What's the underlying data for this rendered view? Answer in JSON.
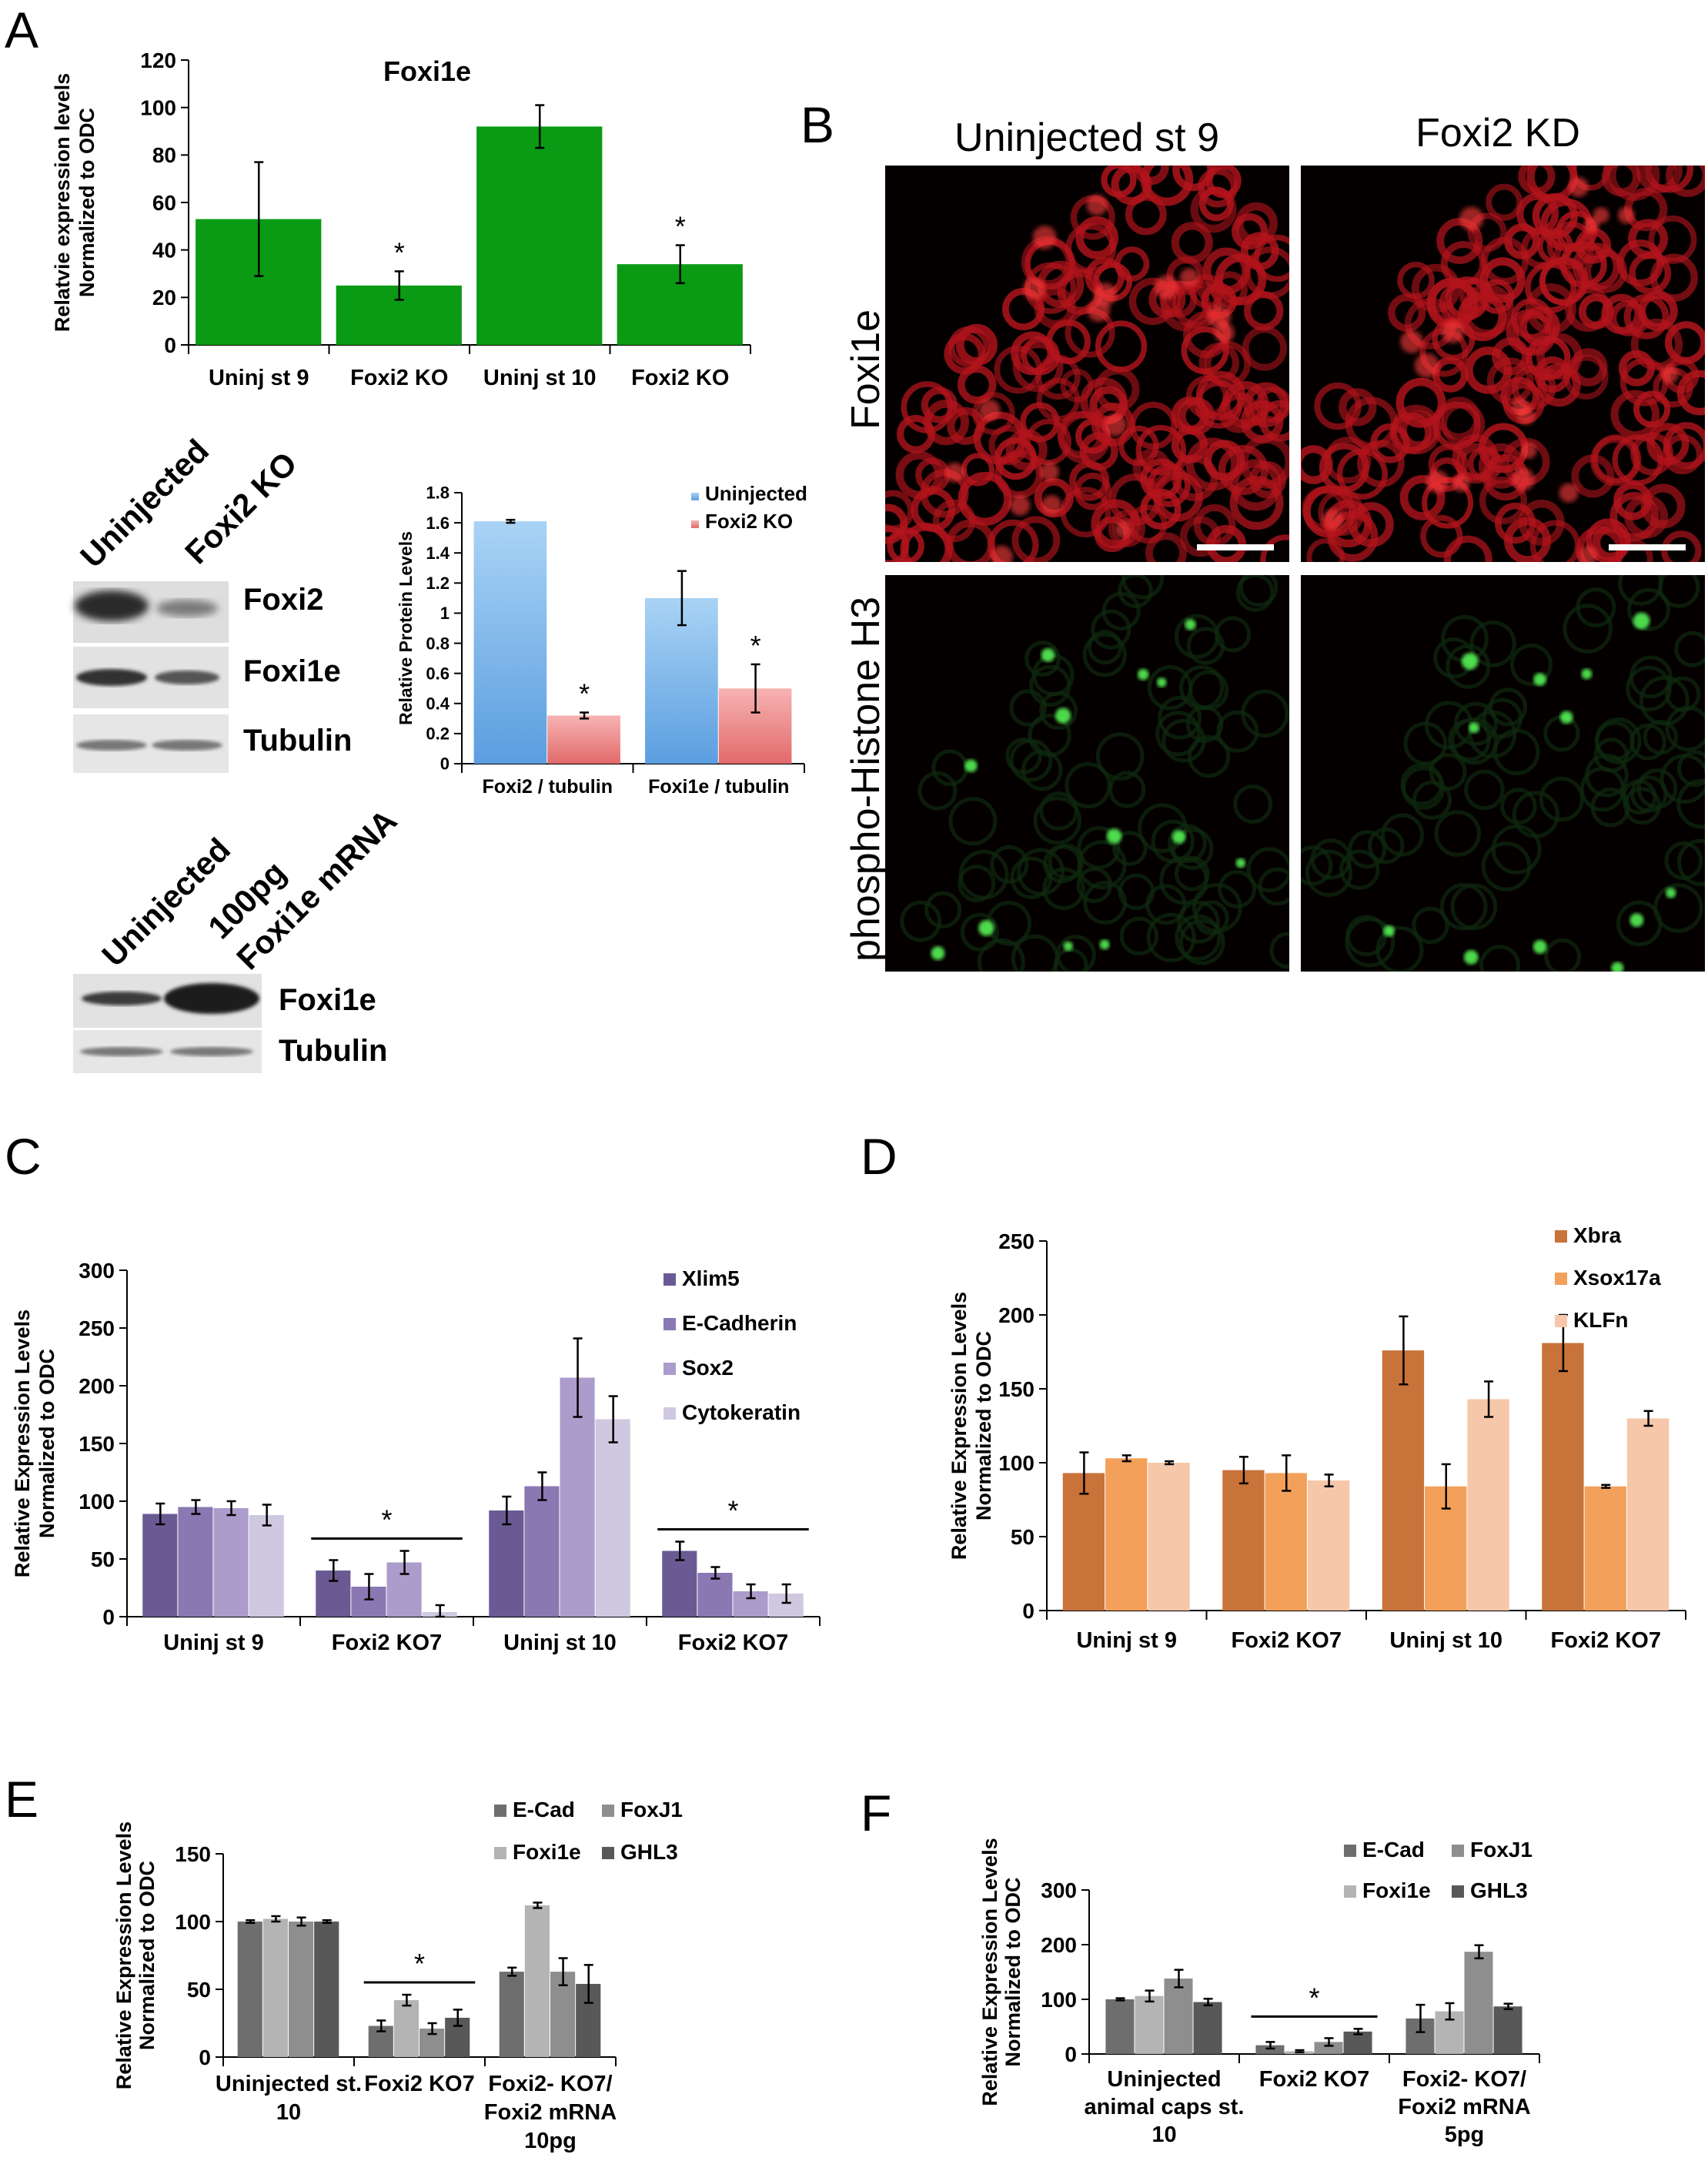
{
  "panels": {
    "A": "A",
    "B": "B",
    "C": "C",
    "D": "D",
    "E": "E",
    "F": "F"
  },
  "colors": {
    "green": "#0a9a14",
    "blue": "#8dc4f0",
    "pink": "#f08c8c",
    "purple1": "#6a5a94",
    "purple2": "#8a78b2",
    "purple3": "#ab9ccb",
    "purple4": "#cfc8e0",
    "orange1": "#c8733a",
    "orange2": "#f3a05a",
    "orange3": "#f6c7a9",
    "gray1": "#6e6e6e",
    "gray2": "#b4b4b4",
    "gray3": "#8e8e8e",
    "gray4": "#585858"
  },
  "blots": {
    "blot1": {
      "lanes": [
        "Uninjected",
        "Foxi2 KO"
      ],
      "bands": [
        "Foxi2",
        "Foxi1e",
        "Tubulin"
      ]
    },
    "blot2": {
      "lanes": [
        "Uninjected",
        "100pg",
        "Foxi1e mRNA"
      ],
      "bands": [
        "Foxi1e",
        "Tubulin"
      ]
    }
  },
  "micrographs": {
    "col_titles": [
      "Uninjected st 9",
      "Foxi2 KD"
    ],
    "row_labels": [
      "Foxi1e",
      "phospho-Histone H3"
    ]
  },
  "chart_data": [
    {
      "id": "A1",
      "type": "bar",
      "title": "Foxi1e",
      "ylabel": [
        "Relatvie expression levels",
        "Normalized to ODC"
      ],
      "categories": [
        "Uninj st 9",
        "Foxi2 KO",
        "Uninj st 10",
        "Foxi2 KO"
      ],
      "series": [
        {
          "values": [
            53,
            25,
            92,
            34
          ],
          "errors": [
            24,
            6,
            9,
            8
          ]
        }
      ],
      "significance": [
        "",
        "*",
        "",
        "*"
      ],
      "ylim": [
        0,
        120
      ],
      "yticks": [
        "0",
        "20",
        "40",
        "60",
        "80",
        "100",
        "120"
      ],
      "legend": "none",
      "grid": false
    },
    {
      "id": "A2",
      "type": "bar",
      "title": "",
      "ylabel": [
        "Relative Protein Levels"
      ],
      "categories": [
        "Foxi2 / tubulin",
        "Foxi1e / tubulin"
      ],
      "series": [
        {
          "name": "Uninjected",
          "values": [
            1.61,
            1.1
          ],
          "errors": [
            0.01,
            0.18
          ]
        },
        {
          "name": "Foxi2 KO",
          "values": [
            0.32,
            0.5
          ],
          "errors": [
            0.02,
            0.16
          ]
        }
      ],
      "significance": [
        "*",
        "*"
      ],
      "ylim": [
        0,
        1.8
      ],
      "yticks": [
        "0",
        "0.2",
        "0.4",
        "0.6",
        "0.8",
        "1",
        "1.2",
        "1.4",
        "1.6",
        "1.8"
      ],
      "legend": "top-right",
      "grid": false
    },
    {
      "id": "C",
      "type": "bar",
      "title": "",
      "ylabel": [
        "Relative Expression Levels",
        "Normalized to ODC"
      ],
      "categories": [
        "Uninj st 9",
        "Foxi2 KO7",
        "Uninj st 10",
        "Foxi2 KO7"
      ],
      "series": [
        {
          "name": "Xlim5",
          "values": [
            89,
            40,
            92,
            57
          ],
          "errors": [
            9,
            9,
            12,
            8
          ]
        },
        {
          "name": "E-Cadherin",
          "values": [
            95,
            26,
            113,
            38
          ],
          "errors": [
            6,
            11,
            12,
            5
          ]
        },
        {
          "name": "Sox2",
          "values": [
            94,
            47,
            207,
            22
          ],
          "errors": [
            6,
            10,
            34,
            6
          ]
        },
        {
          "name": "Cytokeratin",
          "values": [
            88,
            4,
            171,
            20
          ],
          "errors": [
            9,
            6,
            20,
            8
          ]
        }
      ],
      "significance": [
        "",
        "*",
        "",
        "*"
      ],
      "ylim": [
        0,
        300
      ],
      "yticks": [
        "0",
        "50",
        "100",
        "150",
        "200",
        "250",
        "300"
      ],
      "legend": "top-right",
      "grid": false
    },
    {
      "id": "D",
      "type": "bar",
      "title": "",
      "ylabel": [
        "Relative Expression Levels",
        "Normalized to ODC"
      ],
      "categories": [
        "Uninj st 9",
        "Foxi2 KO7",
        "Uninj st 10",
        "Foxi2 KO7"
      ],
      "series": [
        {
          "name": "Xbra",
          "values": [
            93,
            95,
            176,
            181
          ],
          "errors": [
            14,
            9,
            23,
            19
          ]
        },
        {
          "name": "Xsox17a",
          "values": [
            103,
            93,
            84,
            84
          ],
          "errors": [
            2,
            12,
            15,
            1
          ]
        },
        {
          "name": "KLFn",
          "values": [
            100,
            88,
            143,
            130
          ],
          "errors": [
            1,
            4,
            12,
            5
          ]
        }
      ],
      "significance": [
        "",
        "",
        "",
        ""
      ],
      "ylim": [
        0,
        250
      ],
      "yticks": [
        "0",
        "50",
        "100",
        "150",
        "200",
        "250"
      ],
      "legend": "top-right",
      "grid": false
    },
    {
      "id": "E",
      "type": "bar",
      "title": "",
      "ylabel": [
        "Relative Expression Levels",
        "Normalized to ODC"
      ],
      "categories": [
        [
          "Uninjected st.",
          "10"
        ],
        [
          "Foxi2 KO7"
        ],
        [
          "Foxi2- KO7/",
          "Foxi2 mRNA",
          "10pg"
        ]
      ],
      "series": [
        {
          "name": "E-Cad",
          "values": [
            100,
            23,
            63
          ],
          "errors": [
            1,
            4,
            3
          ]
        },
        {
          "name": "Foxi1e",
          "values": [
            102,
            42,
            112
          ],
          "errors": [
            2,
            4,
            2
          ]
        },
        {
          "name": "FoxJ1",
          "values": [
            100,
            21,
            63
          ],
          "errors": [
            3,
            4,
            10
          ]
        },
        {
          "name": "GHL3",
          "values": [
            100,
            29,
            54
          ],
          "errors": [
            1,
            6,
            14
          ]
        }
      ],
      "significance": [
        "",
        "*",
        ""
      ],
      "ylim": [
        0,
        150
      ],
      "yticks": [
        "0",
        "50",
        "100",
        "150"
      ],
      "legend": "top-right",
      "grid": false
    },
    {
      "id": "F",
      "type": "bar",
      "title": "",
      "ylabel": [
        "Relative Expression Levels",
        "Normalized to ODC"
      ],
      "categories": [
        [
          "Uninjected",
          "animal caps st.",
          "10"
        ],
        [
          "Foxi2 KO7"
        ],
        [
          "Foxi2- KO7/",
          "Foxi2 mRNA",
          "5pg"
        ]
      ],
      "series": [
        {
          "name": "E-Cad",
          "values": [
            100,
            16,
            65
          ],
          "errors": [
            2,
            6,
            25
          ]
        },
        {
          "name": "Foxi1e",
          "values": [
            106,
            5,
            78
          ],
          "errors": [
            10,
            2,
            15
          ]
        },
        {
          "name": "FoxJ1",
          "values": [
            138,
            22,
            187
          ],
          "errors": [
            16,
            7,
            12
          ]
        },
        {
          "name": "GHL3",
          "values": [
            95,
            41,
            87
          ],
          "errors": [
            6,
            5,
            5
          ]
        }
      ],
      "significance": [
        "",
        "*",
        ""
      ],
      "ylim": [
        0,
        300
      ],
      "yticks": [
        "0",
        "100",
        "200",
        "300"
      ],
      "legend": "top-right",
      "grid": false
    }
  ]
}
